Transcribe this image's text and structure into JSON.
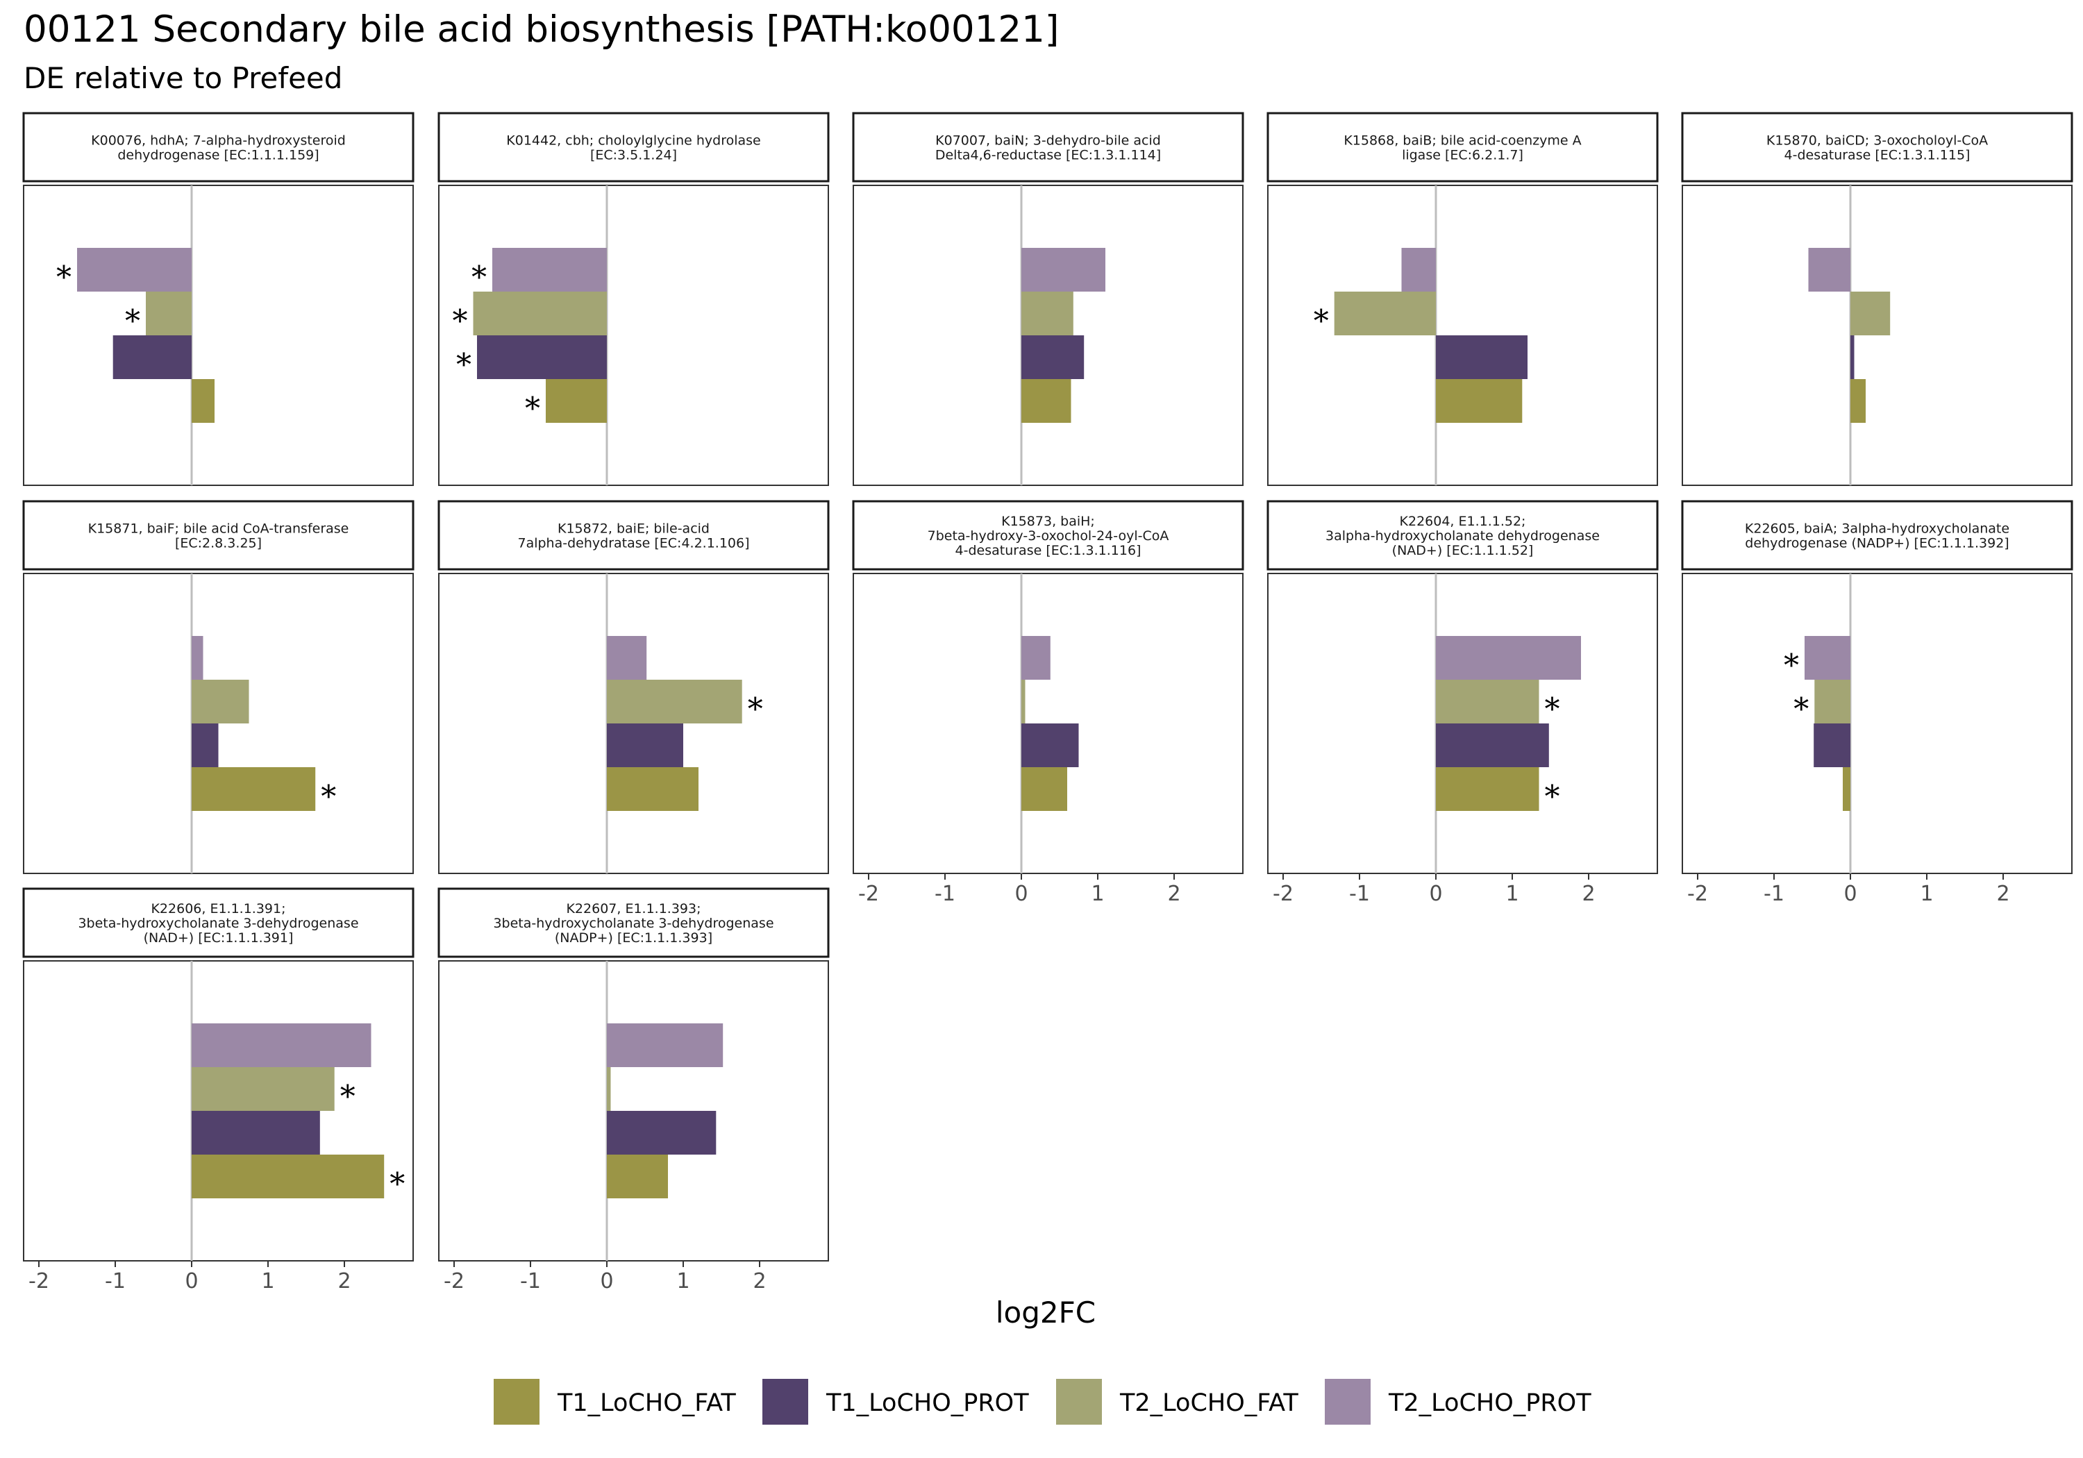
{
  "chart_data": {
    "type": "bar",
    "orientation": "horizontal",
    "title": "00121 Secondary bile acid biosynthesis [PATH:ko00121]",
    "subtitle": "DE relative to Prefeed",
    "xlabel": "log2FC",
    "xlim": [
      -2.2,
      2.9
    ],
    "x_ticks": [
      -2,
      -1,
      0,
      1,
      2
    ],
    "grid": false,
    "legend_position": "bottom",
    "significance_marker": "*",
    "series": [
      {
        "name": "T1_LoCHO_FAT",
        "color": "#9b9546"
      },
      {
        "name": "T1_LoCHO_PROT",
        "color": "#52416c"
      },
      {
        "name": "T2_LoCHO_FAT",
        "color": "#a3a574"
      },
      {
        "name": "T2_LoCHO_PROT",
        "color": "#9b88a6"
      }
    ],
    "panels": [
      {
        "title_lines": [
          "K00076, hdhA; 7-alpha-hydroxysteroid",
          "dehydrogenase [EC:1.1.1.159]"
        ],
        "values": [
          0.3,
          -1.03,
          -0.6,
          -1.5
        ],
        "significant": [
          false,
          false,
          true,
          true
        ],
        "show_axis": false
      },
      {
        "title_lines": [
          "K01442, cbh; choloylglycine hydrolase",
          "[EC:3.5.1.24]"
        ],
        "values": [
          -0.8,
          -1.7,
          -1.75,
          -1.5
        ],
        "significant": [
          true,
          true,
          true,
          true
        ],
        "show_axis": false
      },
      {
        "title_lines": [
          "K07007, baiN; 3-dehydro-bile acid",
          "Delta4,6-reductase [EC:1.3.1.114]"
        ],
        "values": [
          0.65,
          0.82,
          0.68,
          1.1
        ],
        "significant": [
          false,
          false,
          false,
          false
        ],
        "show_axis": false
      },
      {
        "title_lines": [
          "K15868, baiB; bile acid-coenzyme A",
          "ligase [EC:6.2.1.7]"
        ],
        "values": [
          1.13,
          1.2,
          -1.33,
          -0.45
        ],
        "significant": [
          false,
          false,
          true,
          false
        ],
        "show_axis": false
      },
      {
        "title_lines": [
          "K15870, baiCD; 3-oxocholoyl-CoA",
          "4-desaturase [EC:1.3.1.115]"
        ],
        "values": [
          0.2,
          0.05,
          0.52,
          -0.55
        ],
        "significant": [
          false,
          false,
          false,
          false
        ],
        "show_axis": false
      },
      {
        "title_lines": [
          "K15871, baiF; bile acid CoA-transferase",
          "[EC:2.8.3.25]"
        ],
        "values": [
          1.62,
          0.35,
          0.75,
          0.15
        ],
        "significant": [
          true,
          false,
          false,
          false
        ],
        "show_axis": false
      },
      {
        "title_lines": [
          "K15872, baiE; bile-acid",
          "7alpha-dehydratase [EC:4.2.1.106]"
        ],
        "values": [
          1.2,
          1.0,
          1.77,
          0.52
        ],
        "significant": [
          false,
          false,
          true,
          false
        ],
        "show_axis": false
      },
      {
        "title_lines": [
          "K15873, baiH;",
          "7beta-hydroxy-3-oxochol-24-oyl-CoA",
          "4-desaturase [EC:1.3.1.116]"
        ],
        "values": [
          0.6,
          0.75,
          0.05,
          0.38
        ],
        "significant": [
          false,
          false,
          false,
          false
        ],
        "show_axis": true
      },
      {
        "title_lines": [
          "K22604, E1.1.1.52;",
          "3alpha-hydroxycholanate dehydrogenase",
          "(NAD+) [EC:1.1.1.52]"
        ],
        "values": [
          1.35,
          1.48,
          1.35,
          1.9
        ],
        "significant": [
          true,
          false,
          true,
          false
        ],
        "show_axis": true
      },
      {
        "title_lines": [
          "K22605, baiA; 3alpha-hydroxycholanate",
          "dehydrogenase (NADP+) [EC:1.1.1.392]"
        ],
        "values": [
          -0.1,
          -0.48,
          -0.47,
          -0.6
        ],
        "significant": [
          false,
          false,
          true,
          true
        ],
        "show_axis": true
      },
      {
        "title_lines": [
          "K22606, E1.1.1.391;",
          "3beta-hydroxycholanate 3-dehydrogenase",
          "(NAD+) [EC:1.1.1.391]"
        ],
        "values": [
          2.52,
          1.68,
          1.87,
          2.35
        ],
        "significant": [
          true,
          false,
          true,
          false
        ],
        "show_axis": true
      },
      {
        "title_lines": [
          "K22607, E1.1.1.393;",
          "3beta-hydroxycholanate 3-dehydrogenase",
          "(NADP+) [EC:1.1.1.393]"
        ],
        "values": [
          0.8,
          1.43,
          0.05,
          1.52
        ],
        "significant": [
          false,
          false,
          false,
          false
        ],
        "show_axis": true
      }
    ]
  }
}
